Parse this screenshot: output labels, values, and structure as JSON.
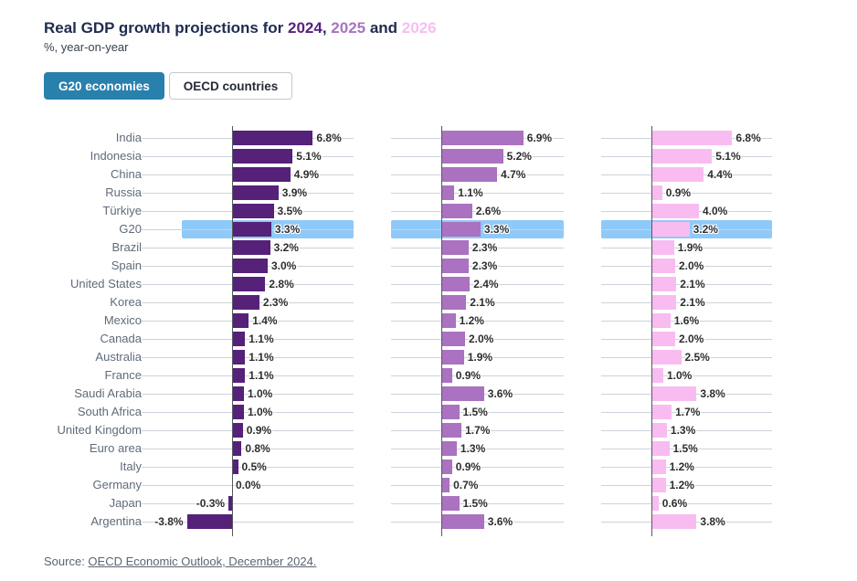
{
  "title": {
    "prefix": "Real GDP growth projections for ",
    "y2024": "2024",
    "comma": ", ",
    "y2025": "2025",
    "and_word": " and ",
    "y2026": "2026"
  },
  "subtitle": "%, year-on-year",
  "toggle": {
    "active_label": "G20 economies",
    "inactive_label": "OECD countries"
  },
  "source": {
    "prefix": "Source: ",
    "link_text": "OECD Economic Outlook, December 2024."
  },
  "colors": {
    "year2024_bar": "#552179",
    "year2025_bar": "#aa72c0",
    "year2026_bar": "#f9bcf1",
    "highlight_band": "#8fc9f9",
    "active_button": "#2a80ad",
    "title_navy": "#1f2c50"
  },
  "chart_data": {
    "type": "bar",
    "orientation": "horizontal",
    "title": "Real GDP growth projections for 2024, 2025 and 2026",
    "subtitle": "%, year-on-year",
    "value_suffix": "%",
    "xlim": [
      -4.2,
      7.2
    ],
    "grid": "row-leader-lines",
    "highlight_category": "G20",
    "categories": [
      "India",
      "Indonesia",
      "China",
      "Russia",
      "Türkiye",
      "G20",
      "Brazil",
      "Spain",
      "United States",
      "Korea",
      "Mexico",
      "Canada",
      "Australia",
      "France",
      "Saudi Arabia",
      "South Africa",
      "United Kingdom",
      "Euro area",
      "Italy",
      "Germany",
      "Japan",
      "Argentina"
    ],
    "series": [
      {
        "name": "2024",
        "color": "#552179",
        "values": [
          6.8,
          5.1,
          4.9,
          3.9,
          3.5,
          3.3,
          3.2,
          3.0,
          2.8,
          2.3,
          1.4,
          1.1,
          1.1,
          1.1,
          1.0,
          1.0,
          0.9,
          0.8,
          0.5,
          0.0,
          -0.3,
          -3.8
        ],
        "labels": [
          "6.8%",
          "5.1%",
          "4.9%",
          "3.9%",
          "3.5%",
          "3.3%",
          "3.2%",
          "3.0%",
          "2.8%",
          "2.3%",
          "1.4%",
          "1.1%",
          "1.1%",
          "1.1%",
          "1.0%",
          "1.0%",
          "0.9%",
          "0.8%",
          "0.5%",
          "0.0%",
          "-0.3%",
          "-3.8%"
        ]
      },
      {
        "name": "2025",
        "color": "#aa72c0",
        "values": [
          6.9,
          5.2,
          4.7,
          1.1,
          2.6,
          3.3,
          2.3,
          2.3,
          2.4,
          2.1,
          1.2,
          2.0,
          1.9,
          0.9,
          3.6,
          1.5,
          1.7,
          1.3,
          0.9,
          0.7,
          1.5,
          3.6
        ],
        "labels": [
          "6.9%",
          "5.2%",
          "4.7%",
          "1.1%",
          "2.6%",
          "3.3%",
          "2.3%",
          "2.3%",
          "2.4%",
          "2.1%",
          "1.2%",
          "2.0%",
          "1.9%",
          "0.9%",
          "3.6%",
          "1.5%",
          "1.7%",
          "1.3%",
          "0.9%",
          "0.7%",
          "1.5%",
          "3.6%"
        ]
      },
      {
        "name": "2026",
        "color": "#f9bcf1",
        "values": [
          6.8,
          5.1,
          4.4,
          0.9,
          4.0,
          3.2,
          1.9,
          2.0,
          2.1,
          2.1,
          1.6,
          2.0,
          2.5,
          1.0,
          3.8,
          1.7,
          1.3,
          1.5,
          1.2,
          1.2,
          0.6,
          3.8
        ],
        "labels": [
          "6.8%",
          "5.1%",
          "4.4%",
          "0.9%",
          "4.0%",
          "3.2%",
          "1.9%",
          "2.0%",
          "2.1%",
          "2.1%",
          "1.6%",
          "2.0%",
          "2.5%",
          "1.0%",
          "3.8%",
          "1.7%",
          "1.3%",
          "1.5%",
          "1.2%",
          "1.2%",
          "0.6%",
          "3.8%"
        ]
      }
    ]
  }
}
